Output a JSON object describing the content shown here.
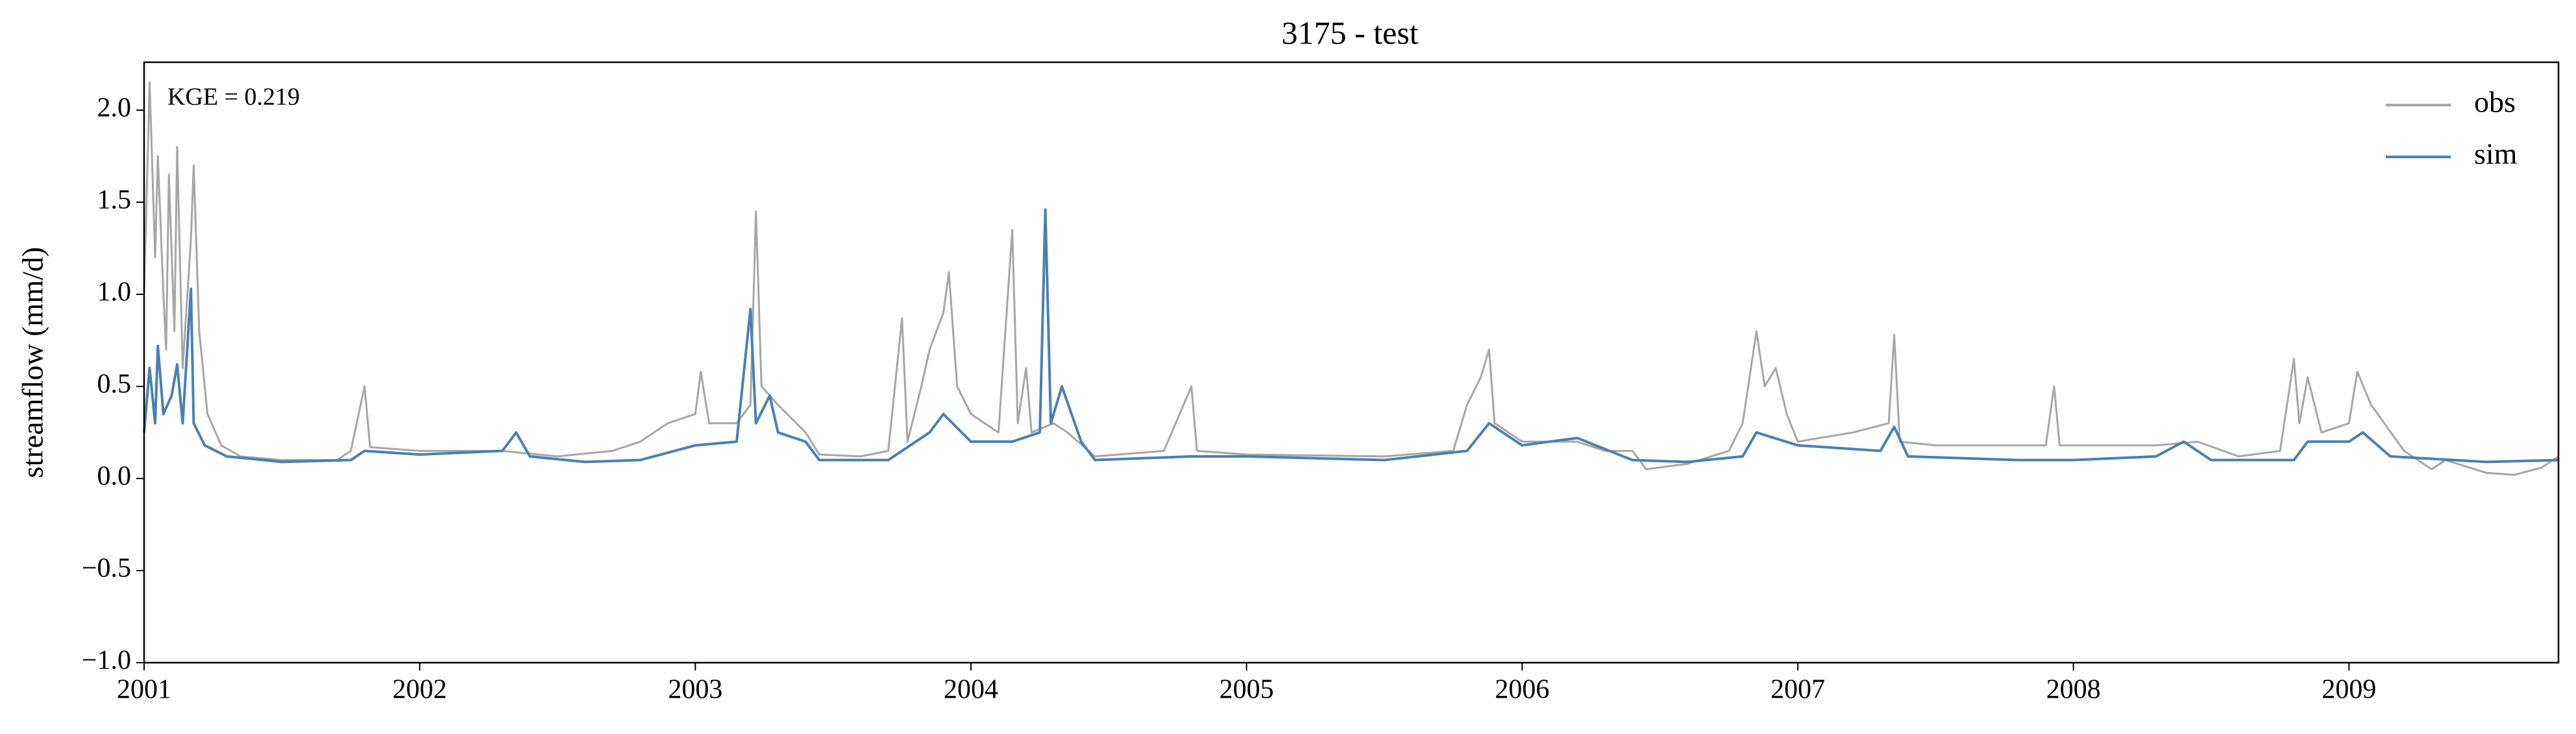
{
  "chart_data": {
    "type": "line",
    "title": "3175 - test",
    "ylabel": "streamflow (mm/d)",
    "annotation": "KGE = 0.219",
    "xlim": [
      2001,
      2009.76
    ],
    "xticks": [
      2001,
      2002,
      2003,
      2004,
      2005,
      2006,
      2007,
      2008,
      2009
    ],
    "ylim": [
      -1,
      2.26
    ],
    "yticks": [
      {
        "value": -1,
        "label": "−1.0"
      },
      {
        "value": -0.5,
        "label": "−0.5"
      },
      {
        "value": 0,
        "label": "0.0"
      },
      {
        "value": 0.5,
        "label": "0.5"
      },
      {
        "value": 1,
        "label": "1.0"
      },
      {
        "value": 1.5,
        "label": "1.5"
      },
      {
        "value": 2,
        "label": "2.0"
      }
    ],
    "legend": "upper right",
    "series": [
      {
        "name": "obs",
        "color": "#a6a6a6",
        "x": [
          2001.0,
          2001.02,
          2001.04,
          2001.05,
          2001.07,
          2001.08,
          2001.09,
          2001.11,
          2001.12,
          2001.14,
          2001.17,
          2001.18,
          2001.2,
          2001.23,
          2001.28,
          2001.35,
          2001.5,
          2001.7,
          2001.75,
          2001.8,
          2001.82,
          2002.0,
          2002.3,
          2002.5,
          2002.7,
          2002.8,
          2002.9,
          2003.0,
          2003.02,
          2003.05,
          2003.15,
          2003.2,
          2003.22,
          2003.24,
          2003.3,
          2003.4,
          2003.45,
          2003.6,
          2003.7,
          2003.75,
          2003.77,
          2003.82,
          2003.85,
          2003.9,
          2003.92,
          2003.95,
          2004.0,
          2004.1,
          2004.15,
          2004.17,
          2004.2,
          2004.22,
          2004.3,
          2004.35,
          2004.45,
          2004.7,
          2004.8,
          2004.82,
          2005.0,
          2005.5,
          2005.75,
          2005.8,
          2005.85,
          2005.88,
          2005.9,
          2006.0,
          2006.2,
          2006.3,
          2006.4,
          2006.45,
          2006.6,
          2006.75,
          2006.8,
          2006.85,
          2006.88,
          2006.92,
          2006.96,
          2007.0,
          2007.2,
          2007.33,
          2007.35,
          2007.37,
          2007.5,
          2007.9,
          2007.93,
          2007.95,
          2008.3,
          2008.45,
          2008.6,
          2008.75,
          2008.8,
          2008.82,
          2008.85,
          2008.9,
          2009.0,
          2009.03,
          2009.08,
          2009.2,
          2009.3,
          2009.35,
          2009.5,
          2009.6,
          2009.7,
          2009.76
        ],
        "values": [
          1.0,
          2.15,
          1.2,
          1.75,
          1.0,
          0.7,
          1.65,
          0.8,
          1.8,
          0.6,
          1.3,
          1.7,
          0.8,
          0.35,
          0.18,
          0.12,
          0.1,
          0.1,
          0.15,
          0.5,
          0.17,
          0.15,
          0.15,
          0.12,
          0.15,
          0.2,
          0.3,
          0.35,
          0.58,
          0.3,
          0.3,
          0.4,
          1.45,
          0.5,
          0.4,
          0.25,
          0.13,
          0.12,
          0.15,
          0.87,
          0.2,
          0.5,
          0.7,
          0.9,
          1.12,
          0.5,
          0.35,
          0.25,
          1.35,
          0.3,
          0.6,
          0.25,
          0.3,
          0.25,
          0.12,
          0.15,
          0.5,
          0.15,
          0.13,
          0.12,
          0.15,
          0.4,
          0.55,
          0.7,
          0.3,
          0.2,
          0.2,
          0.15,
          0.15,
          0.05,
          0.08,
          0.15,
          0.3,
          0.8,
          0.5,
          0.6,
          0.35,
          0.2,
          0.25,
          0.3,
          0.78,
          0.2,
          0.18,
          0.18,
          0.5,
          0.18,
          0.18,
          0.2,
          0.12,
          0.15,
          0.65,
          0.3,
          0.55,
          0.25,
          0.3,
          0.58,
          0.4,
          0.15,
          0.05,
          0.1,
          0.03,
          0.02,
          0.06,
          0.12
        ]
      },
      {
        "name": "sim",
        "color": "#4a80b4",
        "x": [
          2001.0,
          2001.02,
          2001.04,
          2001.05,
          2001.07,
          2001.1,
          2001.12,
          2001.14,
          2001.17,
          2001.18,
          2001.22,
          2001.3,
          2001.5,
          2001.75,
          2001.8,
          2002.0,
          2002.3,
          2002.35,
          2002.4,
          2002.6,
          2002.8,
          2003.0,
          2003.15,
          2003.2,
          2003.22,
          2003.27,
          2003.3,
          2003.4,
          2003.45,
          2003.7,
          2003.85,
          2003.9,
          2004.0,
          2004.15,
          2004.25,
          2004.27,
          2004.29,
          2004.33,
          2004.4,
          2004.45,
          2004.8,
          2005.0,
          2005.5,
          2005.8,
          2005.88,
          2006.0,
          2006.2,
          2006.4,
          2006.6,
          2006.8,
          2006.85,
          2007.0,
          2007.3,
          2007.35,
          2007.4,
          2007.8,
          2008.0,
          2008.3,
          2008.4,
          2008.5,
          2008.8,
          2008.85,
          2009.0,
          2009.05,
          2009.15,
          2009.5,
          2009.76
        ],
        "values": [
          0.25,
          0.6,
          0.3,
          0.72,
          0.35,
          0.45,
          0.62,
          0.3,
          1.03,
          0.3,
          0.18,
          0.12,
          0.09,
          0.1,
          0.15,
          0.13,
          0.15,
          0.25,
          0.12,
          0.09,
          0.1,
          0.18,
          0.2,
          0.92,
          0.3,
          0.45,
          0.25,
          0.2,
          0.1,
          0.1,
          0.25,
          0.35,
          0.2,
          0.2,
          0.25,
          1.46,
          0.3,
          0.5,
          0.2,
          0.1,
          0.12,
          0.12,
          0.1,
          0.15,
          0.3,
          0.18,
          0.22,
          0.1,
          0.09,
          0.12,
          0.25,
          0.18,
          0.15,
          0.28,
          0.12,
          0.1,
          0.1,
          0.12,
          0.2,
          0.1,
          0.1,
          0.2,
          0.2,
          0.25,
          0.12,
          0.09,
          0.1
        ]
      }
    ]
  }
}
